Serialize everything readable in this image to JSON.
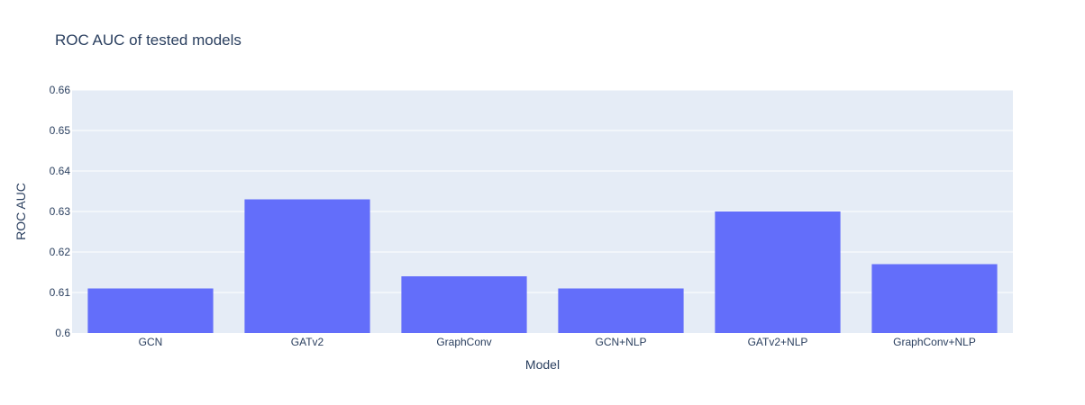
{
  "colors": {
    "plot_background": "#e5ecf6",
    "gridline": "#ffffff",
    "bar": "#636efa",
    "text": "#2a3f5f"
  },
  "chart_data": {
    "type": "bar",
    "title": "ROC AUC of tested models",
    "xlabel": "Model",
    "ylabel": "ROC AUC",
    "categories": [
      "GCN",
      "GATv2",
      "GraphConv",
      "GCN+NLP",
      "GATv2+NLP",
      "GraphConv+NLP"
    ],
    "values": [
      0.611,
      0.633,
      0.614,
      0.611,
      0.63,
      0.617
    ],
    "ylim": [
      0.6,
      0.66
    ],
    "yticks": [
      0.6,
      0.61,
      0.62,
      0.63,
      0.64,
      0.65,
      0.66
    ],
    "ytick_labels": [
      "0.6",
      "0.61",
      "0.62",
      "0.63",
      "0.64",
      "0.65",
      "0.66"
    ],
    "grid": true,
    "legend": "none"
  }
}
